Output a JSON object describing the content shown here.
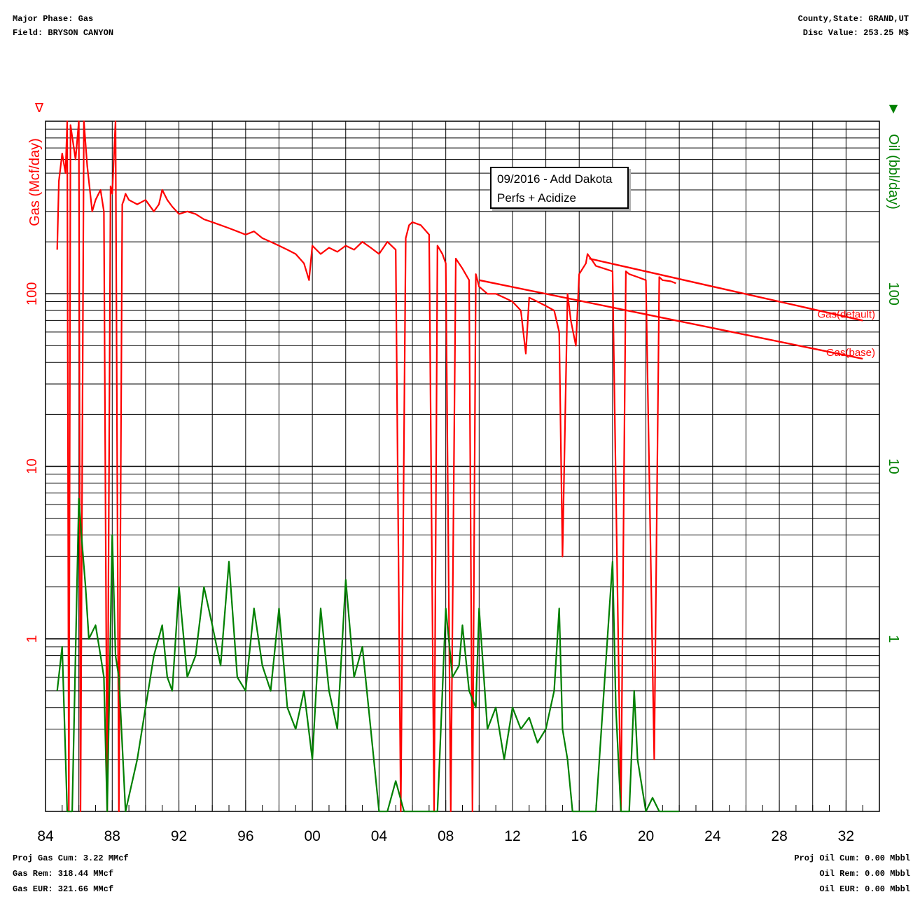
{
  "header": {
    "major_phase": "Major Phase: Gas",
    "field": "Field: BRYSON CANYON",
    "county_state": "County,State: GRAND,UT",
    "disc_value": "Disc Value: 253.25 M$"
  },
  "footer": {
    "proj_gas_cum": "Proj Gas Cum: 3.22 MMcf",
    "gas_rem": "Gas Rem: 318.44 MMcf",
    "gas_eur": "Gas EUR: 321.66 MMcf",
    "proj_oil_cum": "Proj Oil Cum: 0.00 Mbbl",
    "oil_rem": "Oil Rem: 0.00 Mbbl",
    "oil_eur": "Oil EUR: 0.00 Mbbl"
  },
  "annotation": {
    "line1": "09/2016 - Add Dakota",
    "line2": "Perfs + Acidize"
  },
  "colors": {
    "gas": "#ff0000",
    "oil": "#008000",
    "grid": "#000000"
  },
  "chart_data": {
    "type": "line",
    "y_scale": "log",
    "ylim": [
      0.1,
      1000
    ],
    "xlim": [
      1984,
      2034
    ],
    "grid": true,
    "y_left_label": "Gas (Mcf/day)",
    "y_right_label": "Oil (bbl/day)",
    "y_left_markers": "∇",
    "y_right_markers": "▼",
    "y_tick_labels": [
      "1",
      "10",
      "100"
    ],
    "y_tick_values": [
      1,
      10,
      100
    ],
    "x_tick_labels": [
      "84",
      "88",
      "92",
      "96",
      "00",
      "04",
      "08",
      "12",
      "16",
      "20",
      "24",
      "28",
      "32"
    ],
    "x_tick_values": [
      1984,
      1988,
      1992,
      1996,
      2000,
      2004,
      2008,
      2012,
      2016,
      2020,
      2024,
      2028,
      2032
    ],
    "forecast_labels": [
      "Gas(default)",
      "Gas(base)"
    ],
    "series": [
      {
        "name": "Gas",
        "axis": "left",
        "x": [
          1984.7,
          1984.8,
          1985.0,
          1985.2,
          1985.3,
          1985.4,
          1985.5,
          1985.8,
          1986.0,
          1986.1,
          1986.3,
          1986.5,
          1986.8,
          1987.0,
          1987.3,
          1987.5,
          1987.7,
          1987.9,
          1988.0,
          1988.2,
          1988.4,
          1988.6,
          1988.7,
          1988.8,
          1989.0,
          1989.5,
          1990.0,
          1990.5,
          1990.8,
          1991.0,
          1991.3,
          1991.6,
          1992.0,
          1992.5,
          1993.0,
          1993.5,
          1994.0,
          1994.5,
          1995.0,
          1995.5,
          1996.0,
          1996.5,
          1997.0,
          1997.5,
          1998.0,
          1998.5,
          1999.0,
          1999.5,
          1999.8,
          2000.0,
          2000.5,
          2001.0,
          2001.5,
          2002.0,
          2002.5,
          2003.0,
          2003.5,
          2004.0,
          2004.5,
          2005.0,
          2005.3,
          2005.6,
          2005.8,
          2006.0,
          2006.5,
          2007.0,
          2007.3,
          2007.5,
          2007.8,
          2008.0,
          2008.3,
          2008.6,
          2009.0,
          2009.4,
          2009.6,
          2009.8,
          2010.0,
          2010.5,
          2011.0,
          2011.5,
          2012.0,
          2012.5,
          2012.8,
          2013.0,
          2013.5,
          2014.0,
          2014.5,
          2014.8,
          2015.0,
          2015.3,
          2015.5,
          2015.8,
          2016.0,
          2016.4,
          2016.5,
          2016.8,
          2017.0,
          2017.5,
          2018.0,
          2018.5,
          2018.8,
          2019.0,
          2019.5,
          2020.0,
          2020.5,
          2020.8,
          2021.0,
          2021.5,
          2021.8
        ],
        "values": [
          180,
          450,
          650,
          500,
          1000,
          0.1,
          950,
          600,
          1000,
          0.1,
          1000,
          550,
          300,
          350,
          400,
          300,
          0.1,
          420,
          380,
          1000,
          0.1,
          330,
          350,
          380,
          350,
          330,
          350,
          300,
          330,
          400,
          350,
          320,
          290,
          300,
          290,
          270,
          260,
          250,
          240,
          230,
          220,
          230,
          210,
          200,
          190,
          180,
          170,
          150,
          120,
          190,
          170,
          185,
          175,
          190,
          180,
          200,
          185,
          170,
          200,
          180,
          0.1,
          210,
          250,
          260,
          250,
          220,
          0.1,
          190,
          170,
          150,
          0.1,
          160,
          140,
          120,
          0.1,
          130,
          110,
          100,
          100,
          95,
          90,
          80,
          45,
          95,
          90,
          85,
          80,
          60,
          3.0,
          100,
          70,
          50,
          130,
          150,
          170,
          155,
          145,
          140,
          135,
          0.1,
          135,
          130,
          125,
          120,
          0.2,
          125,
          120,
          118,
          115
        ]
      },
      {
        "name": "Oil",
        "axis": "right",
        "x": [
          1984.7,
          1985.0,
          1985.3,
          1985.6,
          1986.0,
          1986.2,
          1986.4,
          1986.6,
          1987.0,
          1987.3,
          1987.5,
          1987.7,
          1988.0,
          1988.2,
          1988.4,
          1988.8,
          1989.5,
          1990.0,
          1990.5,
          1991.0,
          1991.3,
          1991.6,
          1992.0,
          1992.5,
          1993.0,
          1993.5,
          1994.0,
          1994.5,
          1995.0,
          1995.5,
          1996.0,
          1996.5,
          1997.0,
          1997.5,
          1998.0,
          1998.5,
          1999.0,
          1999.5,
          2000.0,
          2000.5,
          2001.0,
          2001.5,
          2002.0,
          2002.5,
          2003.0,
          2003.5,
          2004.0,
          2004.5,
          2005.0,
          2005.5,
          2006.0,
          2006.5,
          2007.0,
          2007.5,
          2007.8,
          2008.0,
          2008.4,
          2008.8,
          2009.0,
          2009.4,
          2009.8,
          2010.0,
          2010.5,
          2011.0,
          2011.5,
          2012.0,
          2012.5,
          2013.0,
          2013.5,
          2014.0,
          2014.5,
          2014.8,
          2015.0,
          2015.3,
          2015.6,
          2016.0,
          2017.0,
          2018.0,
          2018.2,
          2018.5,
          2019.0,
          2019.3,
          2019.5,
          2020.0,
          2020.4,
          2020.8,
          2021.0,
          2022.0
        ],
        "values": [
          0.5,
          0.9,
          0.1,
          0.1,
          6.5,
          3.5,
          2.0,
          1.0,
          1.2,
          0.8,
          0.6,
          0.1,
          4.0,
          0.8,
          0.6,
          0.1,
          0.2,
          0.4,
          0.8,
          1.2,
          0.6,
          0.5,
          2.0,
          0.6,
          0.8,
          2.0,
          1.2,
          0.7,
          2.8,
          0.6,
          0.5,
          1.5,
          0.7,
          0.5,
          1.5,
          0.4,
          0.3,
          0.5,
          0.2,
          1.5,
          0.5,
          0.3,
          2.2,
          0.6,
          0.9,
          0.3,
          0.1,
          0.1,
          0.15,
          0.1,
          0.1,
          0.1,
          0.1,
          0.1,
          0.5,
          1.5,
          0.6,
          0.7,
          1.2,
          0.5,
          0.4,
          1.5,
          0.3,
          0.4,
          0.2,
          0.4,
          0.3,
          0.35,
          0.25,
          0.3,
          0.5,
          1.5,
          0.3,
          0.2,
          0.1,
          0.1,
          0.1,
          2.8,
          0.4,
          0.1,
          0.1,
          0.5,
          0.2,
          0.1,
          0.12,
          0.1,
          0.1,
          0.1
        ]
      },
      {
        "name": "Gas(default)",
        "axis": "left",
        "forecast": true,
        "x": [
          2016.6,
          2033.0
        ],
        "values": [
          160,
          70
        ]
      },
      {
        "name": "Gas(base)",
        "axis": "left",
        "forecast": true,
        "x": [
          2010.0,
          2033.0
        ],
        "values": [
          120,
          42
        ]
      }
    ]
  }
}
